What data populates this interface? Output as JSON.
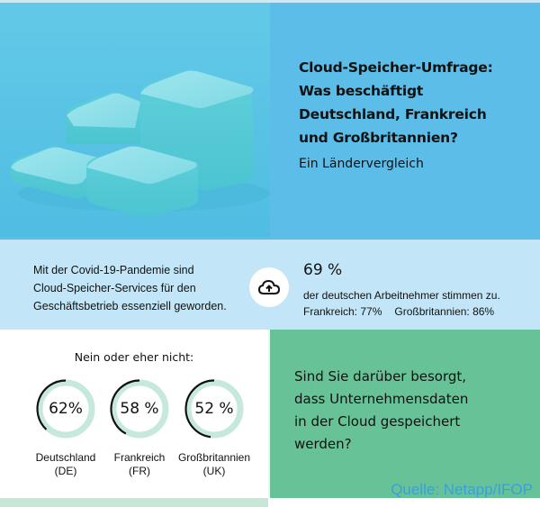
{
  "header": {
    "title_lines": [
      "Cloud-Speicher-Umfrage:",
      "Was beschäftigt",
      "Deutschland, Frankreich",
      "und Großbritannien?"
    ],
    "subtitle": "Ein Ländervergleich"
  },
  "band": {
    "text_lines": [
      "Mit der Covid-19-Pandemie sind",
      "Cloud-Speicher-Services für den",
      "Geschäftsbetrieb essenziell geworden."
    ],
    "icon": "cloud-upload-icon",
    "big_stat": "69 %",
    "line1": "der deutschen Arbeitnehmer stimmen zu.",
    "fr": "Frankreich: 77%",
    "uk": "Großbritannien: 86%"
  },
  "survey": {
    "heading": "Nein oder eher nicht:",
    "items": [
      {
        "pct_label": "62%",
        "value": 62,
        "country": "Deutschland",
        "code": "(DE)"
      },
      {
        "pct_label": "58 %",
        "value": 58,
        "country": "Frankreich",
        "code": "(FR)"
      },
      {
        "pct_label": "52 %",
        "value": 52,
        "country": "Großbritannien",
        "code": "(UK)"
      }
    ],
    "colors": {
      "ring": "#c6e9db",
      "arc": "#111111"
    }
  },
  "question": {
    "lines": [
      "Sind Sie darüber besorgt,",
      "dass Unternehmensdaten",
      "in der Cloud gespeichert",
      "werden?"
    ]
  },
  "source": "Quelle: Netapp/IFOP"
}
